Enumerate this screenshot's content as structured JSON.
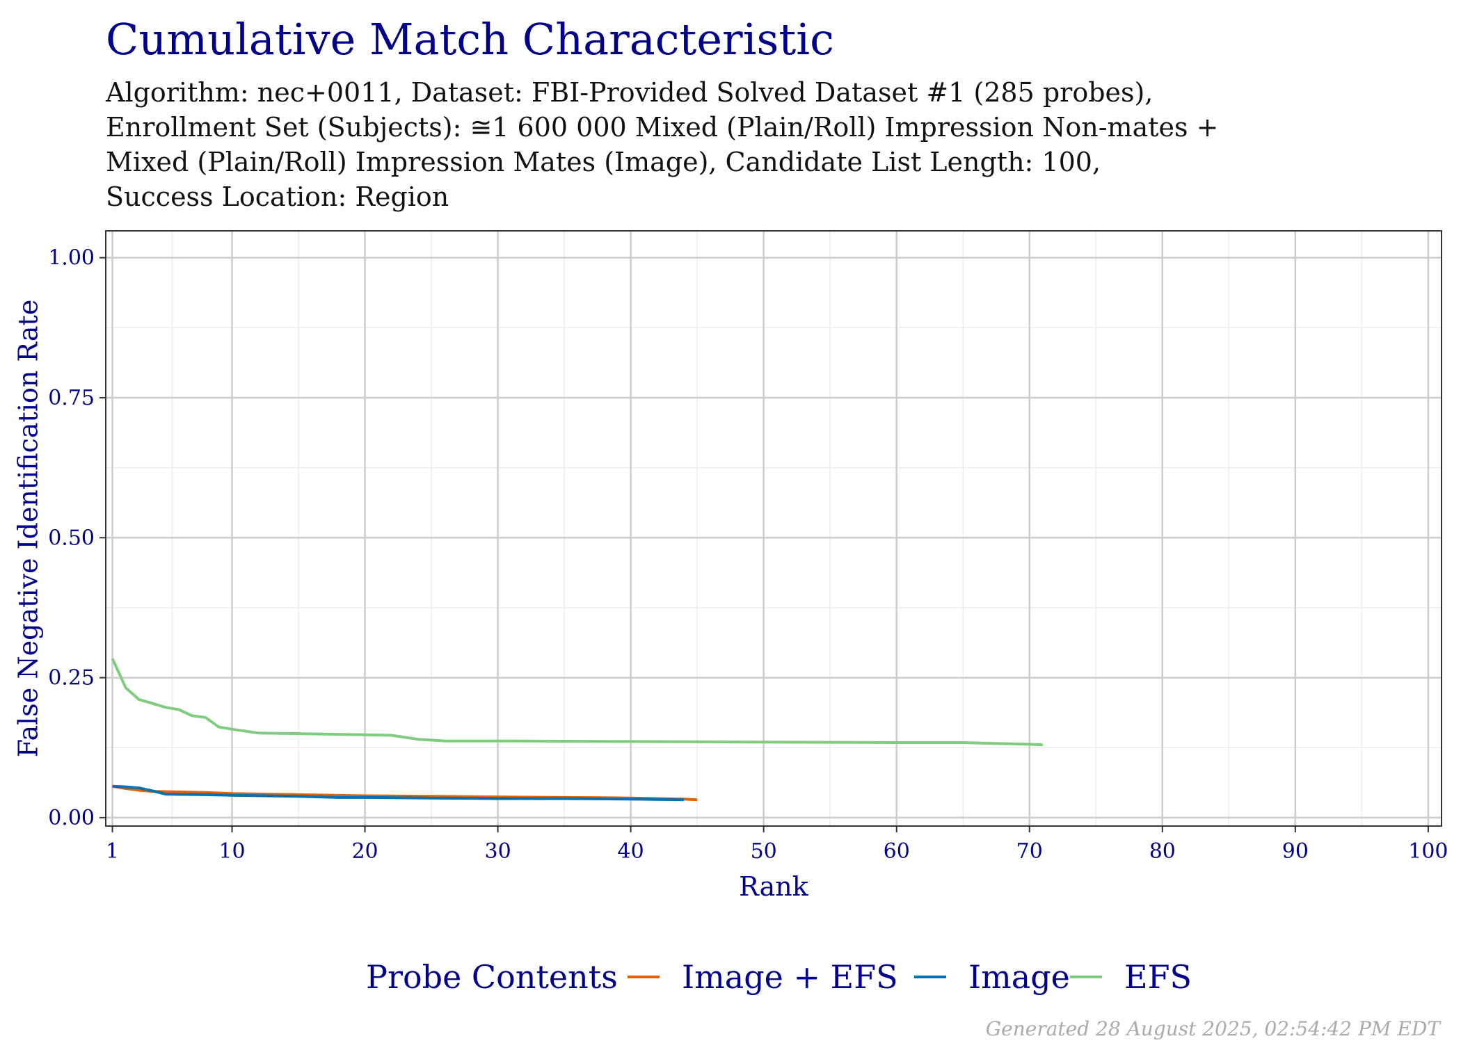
{
  "title": "Cumulative Match Characteristic",
  "subtitle_lines": [
    "Algorithm: nec+0011, Dataset: FBI-Provided Solved Dataset #1 (285 probes),",
    "Enrollment Set (Subjects): ≅1 600 000 Mixed (Plain/Roll) Impression Non-mates +",
    "Mixed (Plain/Roll) Impression Mates (Image), Candidate List Length: 100,",
    "Success Location: Region"
  ],
  "footer": "Generated 28 August 2025, 02:54:42 PM EDT",
  "colors": {
    "title": "#00008B",
    "axis_text": "#00008B",
    "grid_major": "#cccccc",
    "grid_minor": "#ececec",
    "image_efs": "#E66100",
    "image": "#0072B2",
    "efs": "#7FCC7F"
  },
  "chart_data": {
    "type": "line",
    "title": "Cumulative Match Characteristic",
    "xlabel": "Rank",
    "ylabel": "False Negative Identification Rate",
    "xlim": [
      1,
      100
    ],
    "ylim": [
      0,
      1
    ],
    "x_ticks": [
      1,
      10,
      20,
      30,
      40,
      50,
      60,
      70,
      80,
      90,
      100
    ],
    "y_ticks": [
      0.0,
      0.25,
      0.5,
      0.75,
      1.0
    ],
    "y_tick_labels": [
      "0.00",
      "0.25",
      "0.50",
      "0.75",
      "1.00"
    ],
    "grid": true,
    "legend_title": "Probe Contents",
    "legend_position": "bottom",
    "series": [
      {
        "name": "Image + EFS",
        "color": "#E66100",
        "x": [
          1,
          2,
          3,
          4,
          6,
          8,
          10,
          15,
          20,
          25,
          30,
          35,
          40,
          42,
          44,
          45
        ],
        "y": [
          0.056,
          0.052,
          0.049,
          0.047,
          0.046,
          0.045,
          0.043,
          0.041,
          0.039,
          0.038,
          0.037,
          0.036,
          0.035,
          0.034,
          0.033,
          0.032
        ]
      },
      {
        "name": "Image",
        "color": "#0072B2",
        "x": [
          1,
          2,
          3,
          4,
          5,
          8,
          10,
          15,
          18,
          20,
          25,
          30,
          35,
          40,
          44
        ],
        "y": [
          0.056,
          0.055,
          0.053,
          0.048,
          0.042,
          0.041,
          0.04,
          0.038,
          0.036,
          0.036,
          0.035,
          0.034,
          0.034,
          0.033,
          0.032
        ]
      },
      {
        "name": "EFS",
        "color": "#7FCC7F",
        "x": [
          1,
          2,
          3,
          4,
          5,
          6,
          7,
          8,
          9,
          10,
          12,
          15,
          20,
          22,
          24,
          26,
          30,
          40,
          50,
          60,
          65,
          70,
          71
        ],
        "y": [
          0.284,
          0.232,
          0.211,
          0.204,
          0.197,
          0.193,
          0.182,
          0.179,
          0.162,
          0.158,
          0.151,
          0.15,
          0.148,
          0.147,
          0.14,
          0.137,
          0.137,
          0.136,
          0.135,
          0.134,
          0.134,
          0.131,
          0.13
        ]
      }
    ]
  }
}
